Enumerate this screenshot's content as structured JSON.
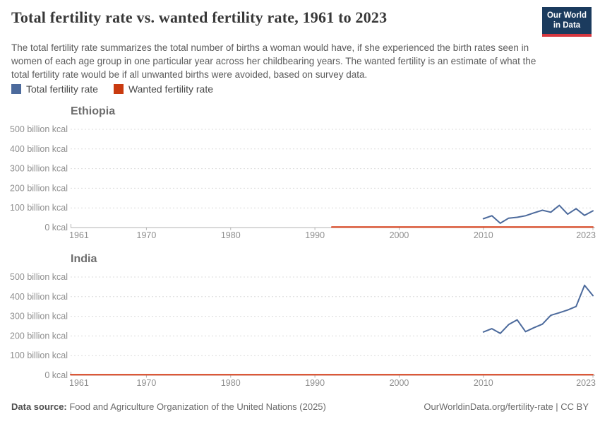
{
  "header": {
    "title": "Total fertility rate vs. wanted fertility rate, 1961 to 2023",
    "subtitle": "The total fertility rate summarizes the total number of births a woman would have, if she experienced the birth rates seen in women of each age group in one particular year across her childbearing years. The wanted fertility is an estimate of what the total fertility rate would be if all unwanted births were avoided, based on survey data.",
    "logo_line1": "Our World",
    "logo_line2": "in Data",
    "logo_bg": "#1b3b5e",
    "logo_accent": "#d6373f"
  },
  "legend": {
    "items": [
      {
        "label": "Total fertility rate",
        "color": "#4C6A9C"
      },
      {
        "label": "Wanted fertility rate",
        "color": "#C93A0F"
      }
    ]
  },
  "chart_data": [
    {
      "type": "line",
      "title": "Ethiopia",
      "xlim": [
        1961,
        2023
      ],
      "ylim": [
        0,
        500
      ],
      "grid": "dashed-horizontal",
      "x_ticks": [
        1961,
        1970,
        1980,
        1990,
        2000,
        2010,
        2023
      ],
      "y_ticks": [
        {
          "value": 0,
          "label": "0 kcal"
        },
        {
          "value": 100,
          "label": "100 billion kcal"
        },
        {
          "value": 200,
          "label": "200 billion kcal"
        },
        {
          "value": 300,
          "label": "300 billion kcal"
        },
        {
          "value": 400,
          "label": "400 billion kcal"
        },
        {
          "value": 500,
          "label": "500 billion kcal"
        }
      ],
      "series": [
        {
          "name": "Total fertility rate",
          "color": "#4C6A9C",
          "x": [
            2010,
            2011,
            2012,
            2013,
            2014,
            2015,
            2016,
            2017,
            2018,
            2019,
            2020,
            2021,
            2022,
            2023
          ],
          "values": [
            45,
            60,
            22,
            48,
            52,
            60,
            75,
            88,
            78,
            113,
            68,
            96,
            62,
            85
          ]
        },
        {
          "name": "Wanted fertility rate",
          "color": "#D73E19",
          "x": [
            1992,
            2023
          ],
          "values": [
            3,
            3
          ]
        }
      ]
    },
    {
      "type": "line",
      "title": "India",
      "xlim": [
        1961,
        2023
      ],
      "ylim": [
        0,
        500
      ],
      "grid": "dashed-horizontal",
      "x_ticks": [
        1961,
        1970,
        1980,
        1990,
        2000,
        2010,
        2023
      ],
      "y_ticks": [
        {
          "value": 0,
          "label": "0 kcal"
        },
        {
          "value": 100,
          "label": "100 billion kcal"
        },
        {
          "value": 200,
          "label": "200 billion kcal"
        },
        {
          "value": 300,
          "label": "300 billion kcal"
        },
        {
          "value": 400,
          "label": "400 billion kcal"
        },
        {
          "value": 500,
          "label": "500 billion kcal"
        }
      ],
      "series": [
        {
          "name": "Total fertility rate",
          "color": "#4C6A9C",
          "x": [
            2010,
            2011,
            2012,
            2013,
            2014,
            2015,
            2016,
            2017,
            2018,
            2019,
            2020,
            2021,
            2022,
            2023
          ],
          "values": [
            220,
            237,
            213,
            258,
            282,
            222,
            242,
            260,
            305,
            318,
            332,
            350,
            458,
            405
          ]
        },
        {
          "name": "Wanted fertility rate",
          "color": "#D73E19",
          "x": [
            1961,
            2023
          ],
          "values": [
            3,
            3
          ]
        }
      ]
    }
  ],
  "footer": {
    "source_label": "Data source:",
    "source_text": " Food and Agriculture Organization of the United Nations (2025)",
    "citation": "OurWorldinData.org/fertility-rate | CC BY"
  }
}
